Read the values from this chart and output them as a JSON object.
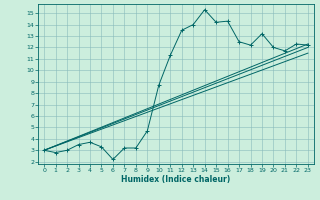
{
  "xlabel": "Humidex (Indice chaleur)",
  "bg_color": "#cceedd",
  "grid_color": "#88bbbb",
  "line_color": "#006666",
  "xlim": [
    -0.5,
    23.5
  ],
  "ylim": [
    1.8,
    15.8
  ],
  "xticks": [
    0,
    1,
    2,
    3,
    4,
    5,
    6,
    7,
    8,
    9,
    10,
    11,
    12,
    13,
    14,
    15,
    16,
    17,
    18,
    19,
    20,
    21,
    22,
    23
  ],
  "yticks": [
    2,
    3,
    4,
    5,
    6,
    7,
    8,
    9,
    10,
    11,
    12,
    13,
    14,
    15
  ],
  "noisy_x": [
    0,
    1,
    2,
    3,
    4,
    5,
    6,
    7,
    8,
    9,
    10,
    11,
    12,
    13,
    14,
    15,
    16,
    17,
    18,
    19,
    20,
    21,
    22,
    23
  ],
  "noisy_y": [
    3.0,
    2.8,
    3.0,
    3.5,
    3.7,
    3.3,
    2.2,
    3.2,
    3.2,
    4.7,
    8.7,
    11.3,
    13.5,
    14.0,
    15.3,
    14.2,
    14.3,
    12.5,
    12.2,
    13.2,
    12.0,
    11.7,
    12.3,
    12.2
  ],
  "line1_x": [
    0,
    23
  ],
  "line1_y": [
    3.0,
    12.0
  ],
  "line2_x": [
    0,
    23
  ],
  "line2_y": [
    3.0,
    11.5
  ],
  "line3_x": [
    0,
    23
  ],
  "line3_y": [
    3.0,
    12.3
  ]
}
